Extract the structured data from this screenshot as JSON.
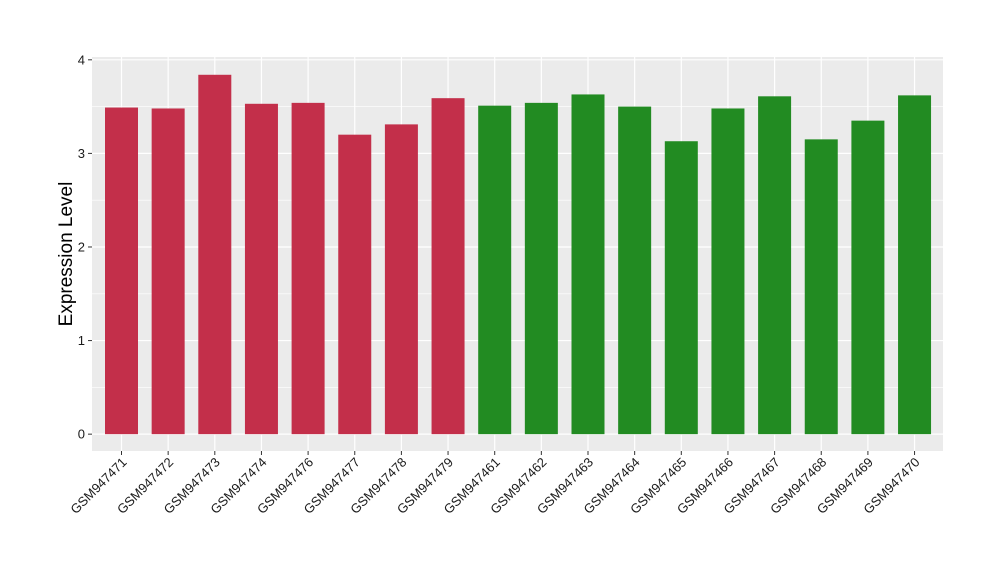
{
  "chart_data": {
    "type": "bar",
    "title": "",
    "xlabel": "",
    "ylabel": "Expression Level",
    "ylim": [
      -0.18,
      4.03
    ],
    "yticks": [
      0,
      1,
      2,
      3,
      4
    ],
    "grid": true,
    "legend": "none",
    "panel_background": "#ebebeb",
    "grid_color": "#ffffff",
    "categories": [
      "GSM947471",
      "GSM947472",
      "GSM947473",
      "GSM947474",
      "GSM947476",
      "GSM947477",
      "GSM947478",
      "GSM947479",
      "GSM947461",
      "GSM947462",
      "GSM947463",
      "GSM947464",
      "GSM947465",
      "GSM947466",
      "GSM947467",
      "GSM947468",
      "GSM947469",
      "GSM947470"
    ],
    "values": [
      3.49,
      3.48,
      3.84,
      3.53,
      3.54,
      3.2,
      3.31,
      3.59,
      3.51,
      3.54,
      3.63,
      3.5,
      3.13,
      3.48,
      3.61,
      3.15,
      3.35,
      3.62
    ],
    "colors": [
      "#c32f4a",
      "#c32f4a",
      "#c32f4a",
      "#c32f4a",
      "#c32f4a",
      "#c32f4a",
      "#c32f4a",
      "#c32f4a",
      "#228b22",
      "#228b22",
      "#228b22",
      "#228b22",
      "#228b22",
      "#228b22",
      "#228b22",
      "#228b22",
      "#228b22",
      "#228b22"
    ]
  }
}
